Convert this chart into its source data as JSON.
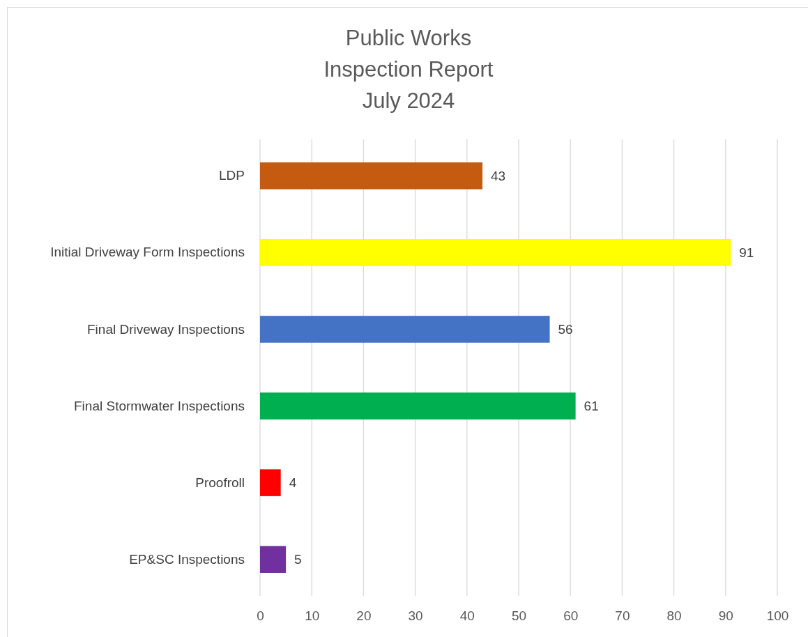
{
  "chart_data": {
    "type": "bar",
    "orientation": "horizontal",
    "title": "Public Works\nInspection Report\nJuly 2024",
    "categories": [
      "LDP",
      "Initial Driveway Form Inspections",
      "Final Driveway Inspections",
      "Final Stormwater Inspections",
      "Proofroll",
      "EP&SC Inspections"
    ],
    "values": [
      43,
      91,
      56,
      61,
      4,
      5
    ],
    "colors": [
      "#c55a11",
      "#ffff00",
      "#4472c4",
      "#00b050",
      "#ff0000",
      "#7030a0"
    ],
    "xlim": [
      0,
      100
    ],
    "xticks": [
      0,
      10,
      20,
      30,
      40,
      50,
      60,
      70,
      80,
      90,
      100
    ],
    "grid": "x",
    "data_labels": true
  }
}
